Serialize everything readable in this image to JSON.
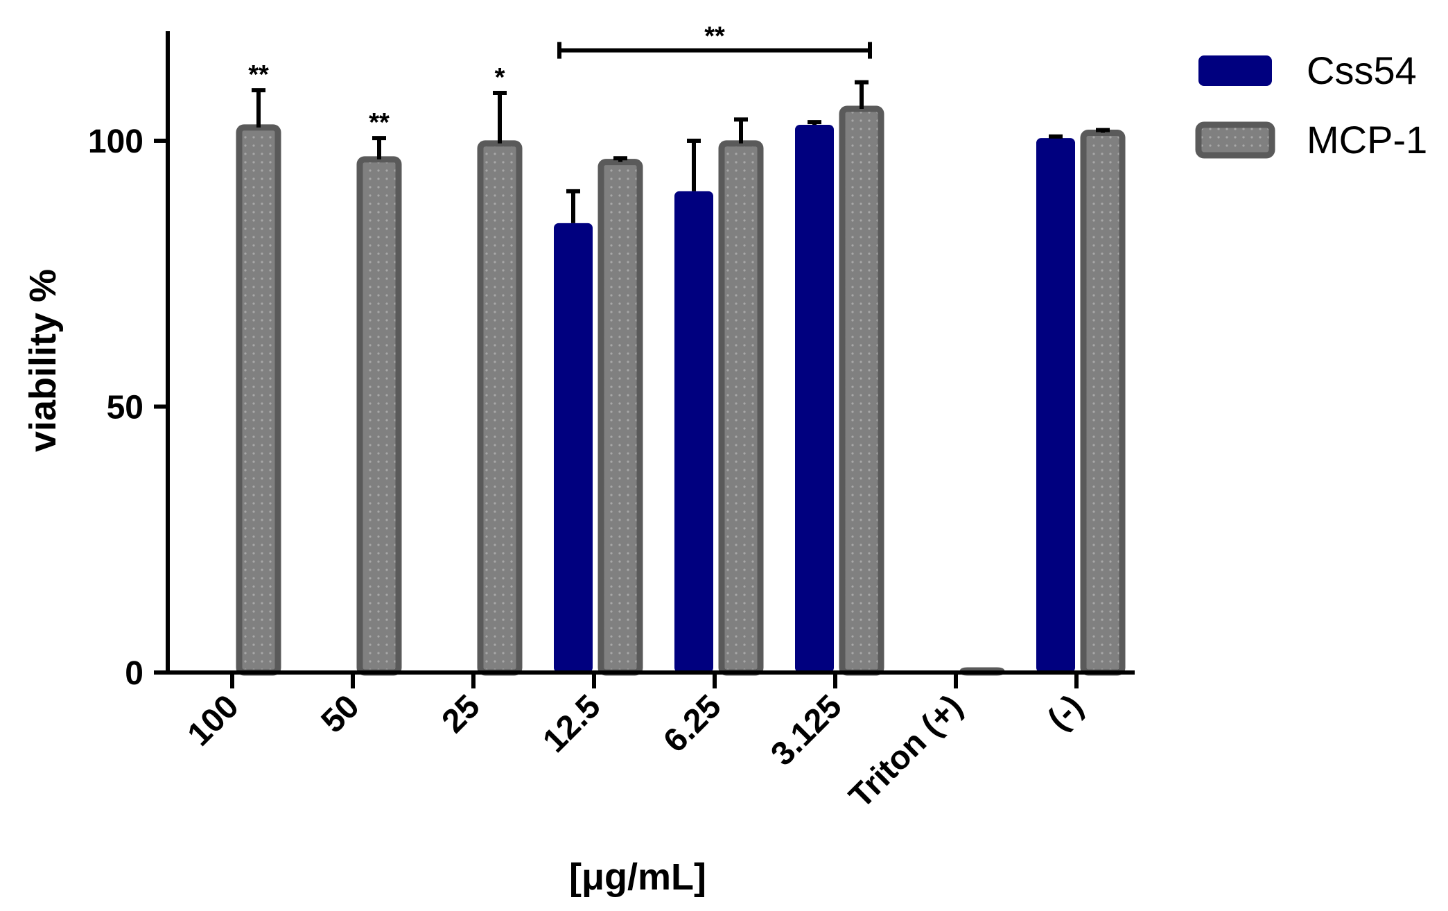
{
  "chart_data": {
    "type": "bar",
    "title": "",
    "xlabel": "[μg/mL]",
    "ylabel": "viability %",
    "ylim": [
      0,
      120
    ],
    "yticks": [
      0,
      50,
      100
    ],
    "grid": false,
    "legend": "top-right",
    "categories": [
      "100",
      "50",
      "25",
      "12.5",
      "6.25",
      "3.125",
      "Triton (+)",
      "(-)"
    ],
    "series": [
      {
        "name": "Css54",
        "color": "#00007f",
        "values": [
          0,
          0,
          0,
          84.5,
          90.5,
          103,
          0.3,
          100.5
        ],
        "errors": [
          0,
          0,
          0,
          6,
          9.5,
          0.5,
          0,
          0.3
        ]
      },
      {
        "name": "MCP-1",
        "color": "#808080",
        "edge_color": "#5a5a5a",
        "values": [
          102.5,
          96.5,
          99.5,
          96,
          99.5,
          106,
          0.2,
          101.5
        ],
        "errors": [
          7,
          4,
          9.5,
          0.7,
          4.5,
          5,
          0,
          0.5
        ]
      }
    ],
    "annotations": [
      {
        "text": "**",
        "category": "100",
        "series": "MCP-1"
      },
      {
        "text": "**",
        "category": "50",
        "series": "MCP-1"
      },
      {
        "text": "*",
        "category": "25",
        "series": "MCP-1"
      },
      {
        "text": "**",
        "from": "12.5",
        "to": "3.125",
        "type": "bracket",
        "y": 117
      }
    ]
  }
}
